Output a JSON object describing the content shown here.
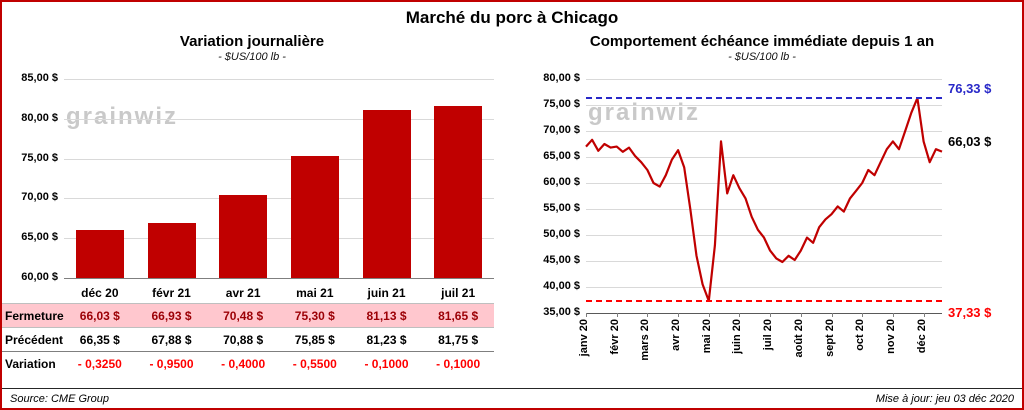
{
  "title": "Marché du porc à Chicago",
  "watermark": "grainwiz",
  "footer": {
    "source": "Source: CME Group",
    "updated": "Mise à jour: jeu 03 déc 2020"
  },
  "chart_data": [
    {
      "type": "bar",
      "title": "Variation journalière",
      "subtitle": "- $US/100 lb -",
      "categories": [
        "déc 20",
        "févr 21",
        "avr 21",
        "mai 21",
        "juin 21",
        "juil 21"
      ],
      "values": [
        66.03,
        66.93,
        70.48,
        75.3,
        81.13,
        81.65
      ],
      "ylim": [
        60,
        85
      ],
      "ytick_step": 5,
      "ytick_labels": [
        "60,00 $",
        "65,00 $",
        "70,00 $",
        "75,00 $",
        "80,00 $",
        "85,00 $"
      ],
      "bar_color": "#C00000",
      "grid": true,
      "legend": "none",
      "table_rows": [
        {
          "label": "Fermeture",
          "values": [
            "66,03  $",
            "66,93  $",
            "70,48  $",
            "75,30  $",
            "81,13  $",
            "81,65  $"
          ],
          "style": "closing-highlight"
        },
        {
          "label": "Précédent",
          "values": [
            "66,35  $",
            "67,88  $",
            "70,88  $",
            "75,85  $",
            "81,23  $",
            "81,75  $"
          ],
          "style": "normal"
        },
        {
          "label": "Variation",
          "values": [
            "- 0,3250",
            "- 0,9500",
            "- 0,4000",
            "- 0,5500",
            "- 0,1000",
            "- 0,1000"
          ],
          "style": "negative"
        }
      ]
    },
    {
      "type": "line",
      "title": "Comportement échéance immédiate depuis 1 an",
      "subtitle": "- $US/100 lb -",
      "x_labels": [
        "janv 20",
        "févr 20",
        "mars 20",
        "avr 20",
        "mai 20",
        "juin 20",
        "juil 20",
        "août 20",
        "sept 20",
        "oct 20",
        "nov 20",
        "déc 20"
      ],
      "points_per_month": 5,
      "values": [
        67.0,
        68.3,
        66.2,
        67.5,
        66.8,
        67.0,
        66.0,
        66.8,
        65.2,
        64.0,
        62.5,
        60.0,
        59.3,
        61.5,
        64.5,
        66.3,
        63.0,
        55.0,
        46.0,
        40.5,
        37.33,
        48.0,
        68.0,
        58.0,
        61.5,
        59.0,
        57.0,
        53.5,
        51.0,
        49.5,
        47.0,
        45.5,
        44.8,
        46.0,
        45.2,
        47.0,
        49.5,
        48.5,
        51.5,
        53.0,
        54.0,
        55.5,
        54.5,
        57.0,
        58.5,
        60.0,
        62.5,
        61.5,
        64.0,
        66.5,
        68.0,
        66.5,
        70.0,
        73.5,
        76.33,
        68.0,
        64.0,
        66.5,
        66.03
      ],
      "ylim": [
        35,
        80
      ],
      "ytick_step": 5,
      "ytick_labels": [
        "35,00 $",
        "40,00 $",
        "45,00 $",
        "50,00 $",
        "55,00 $",
        "60,00 $",
        "65,00 $",
        "70,00 $",
        "75,00 $",
        "80,00 $"
      ],
      "line_color": "#C00000",
      "grid": true,
      "legend": "none",
      "annotations": {
        "max_line": {
          "value": 76.33,
          "label": "76,33 $",
          "color": "#2828C8"
        },
        "min_line": {
          "value": 37.33,
          "label": "37,33 $",
          "color": "#FF0000"
        },
        "last_point": {
          "value": 66.03,
          "label": "66,03 $",
          "color": "#000000"
        }
      }
    }
  ]
}
